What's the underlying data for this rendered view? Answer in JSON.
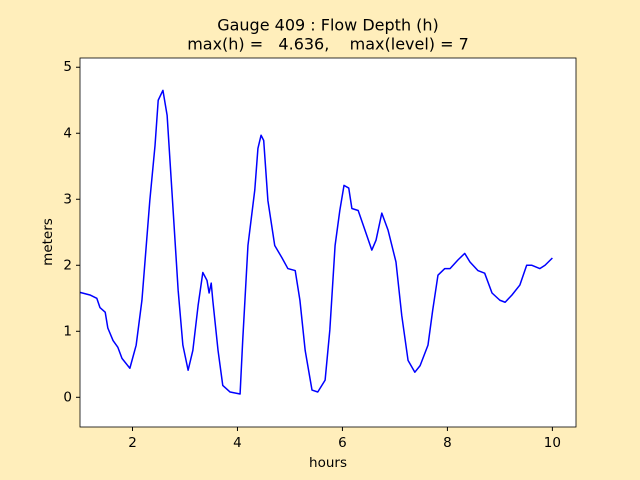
{
  "chart_data": {
    "type": "line",
    "title": "Gauge 409 : Flow Depth (h)",
    "subtitle": "max(h) =   4.636,    max(level) = 7",
    "xlabel": "hours",
    "ylabel": "meters",
    "x": [
      1.0,
      1.19,
      1.32,
      1.38,
      1.48,
      1.53,
      1.63,
      1.72,
      1.8,
      1.95,
      2.07,
      2.18,
      2.33,
      2.43,
      2.49,
      2.58,
      2.66,
      2.75,
      2.87,
      2.96,
      3.06,
      3.15,
      3.25,
      3.34,
      3.42,
      3.46,
      3.5,
      3.53,
      3.63,
      3.72,
      3.86,
      4.05,
      4.1,
      4.2,
      4.33,
      4.39,
      4.45,
      4.5,
      4.58,
      4.71,
      4.85,
      4.96,
      5.1,
      5.19,
      5.29,
      5.42,
      5.53,
      5.67,
      5.76,
      5.86,
      5.95,
      6.03,
      6.12,
      6.18,
      6.3,
      6.43,
      6.56,
      6.64,
      6.75,
      6.87,
      7.02,
      7.13,
      7.25,
      7.38,
      7.48,
      7.63,
      7.72,
      7.82,
      7.95,
      8.05,
      8.2,
      8.33,
      8.43,
      8.58,
      8.71,
      8.85,
      9.0,
      9.1,
      9.23,
      9.38,
      9.51,
      9.61,
      9.76,
      9.86,
      10.0
    ],
    "series": [
      {
        "name": "h",
        "color": "#0000ff",
        "values": [
          1.59,
          1.55,
          1.5,
          1.36,
          1.29,
          1.05,
          0.86,
          0.76,
          0.59,
          0.44,
          0.79,
          1.47,
          2.98,
          3.82,
          4.5,
          4.65,
          4.27,
          3.14,
          1.62,
          0.79,
          0.41,
          0.71,
          1.39,
          1.89,
          1.77,
          1.58,
          1.73,
          1.47,
          0.71,
          0.18,
          0.08,
          0.05,
          0.86,
          2.3,
          3.14,
          3.77,
          3.97,
          3.89,
          2.98,
          2.3,
          2.11,
          1.95,
          1.92,
          1.47,
          0.71,
          0.11,
          0.08,
          0.26,
          1.02,
          2.3,
          2.83,
          3.21,
          3.17,
          2.86,
          2.83,
          2.53,
          2.23,
          2.38,
          2.79,
          2.53,
          2.05,
          1.24,
          0.56,
          0.38,
          0.48,
          0.79,
          1.32,
          1.85,
          1.95,
          1.95,
          2.08,
          2.18,
          2.05,
          1.92,
          1.88,
          1.58,
          1.47,
          1.44,
          1.55,
          1.7,
          2.0,
          2.0,
          1.95,
          2.0,
          2.11
        ]
      }
    ],
    "xlim": [
      1,
      10.45
    ],
    "xticks": [
      2,
      4,
      6,
      8,
      10
    ],
    "ylim": [
      -0.45,
      5.14
    ],
    "yticks": [
      0,
      1,
      2,
      3,
      4,
      5
    ],
    "grid": false
  }
}
